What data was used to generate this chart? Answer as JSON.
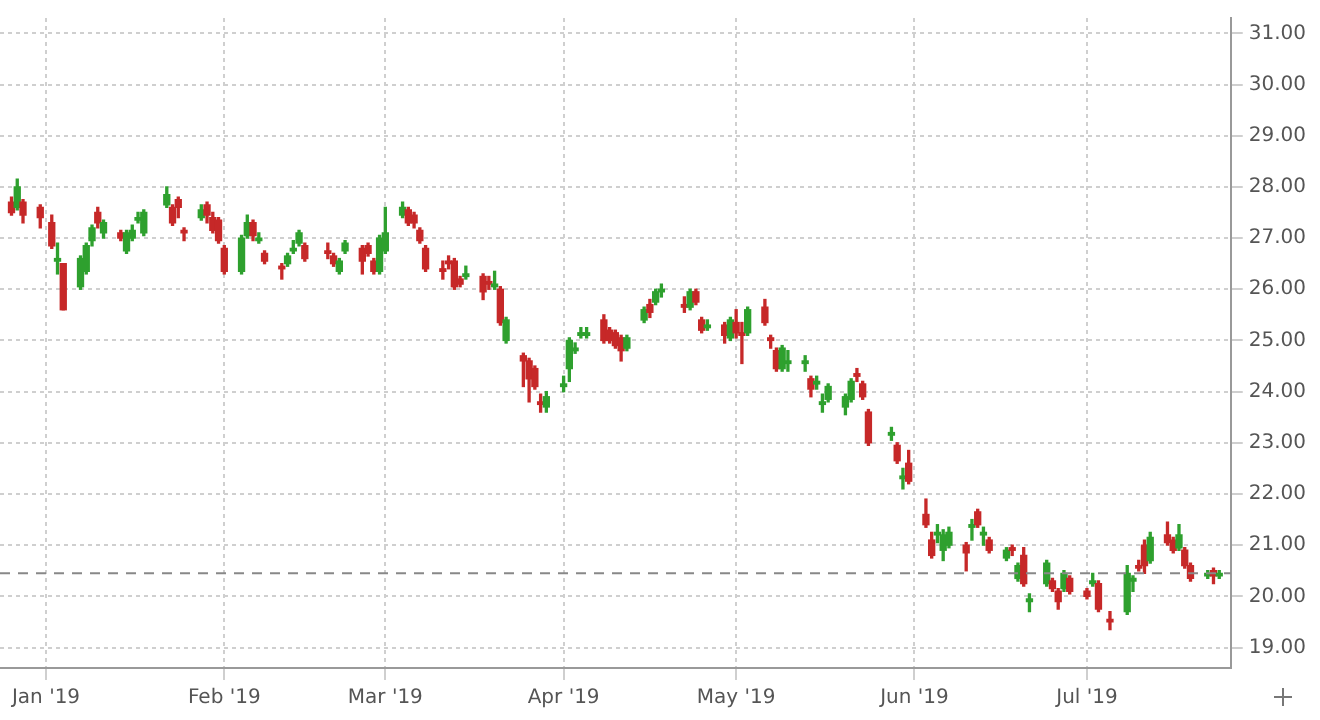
{
  "chart_data": {
    "type": "candlestick",
    "x": [
      "2018-12-26",
      "2018-12-27",
      "2018-12-28",
      "2018-12-31",
      "2019-01-02",
      "2019-01-03",
      "2019-01-04",
      "2019-01-07",
      "2019-01-08",
      "2019-01-09",
      "2019-01-10",
      "2019-01-11",
      "2019-01-14",
      "2019-01-15",
      "2019-01-16",
      "2019-01-17",
      "2019-01-18",
      "2019-01-22",
      "2019-01-23",
      "2019-01-24",
      "2019-01-25",
      "2019-01-28",
      "2019-01-29",
      "2019-01-30",
      "2019-01-31",
      "2019-02-01",
      "2019-02-04",
      "2019-02-05",
      "2019-02-06",
      "2019-02-07",
      "2019-02-08",
      "2019-02-11",
      "2019-02-12",
      "2019-02-13",
      "2019-02-14",
      "2019-02-15",
      "2019-02-19",
      "2019-02-20",
      "2019-02-21",
      "2019-02-22",
      "2019-02-25",
      "2019-02-26",
      "2019-02-27",
      "2019-02-28",
      "2019-03-01",
      "2019-03-04",
      "2019-03-05",
      "2019-03-06",
      "2019-03-07",
      "2019-03-08",
      "2019-03-11",
      "2019-03-12",
      "2019-03-13",
      "2019-03-14",
      "2019-03-15",
      "2019-03-18",
      "2019-03-19",
      "2019-03-20",
      "2019-03-21",
      "2019-03-22",
      "2019-03-25",
      "2019-03-26",
      "2019-03-27",
      "2019-03-28",
      "2019-03-29",
      "2019-04-01",
      "2019-04-02",
      "2019-04-03",
      "2019-04-04",
      "2019-04-05",
      "2019-04-08",
      "2019-04-09",
      "2019-04-10",
      "2019-04-11",
      "2019-04-12",
      "2019-04-15",
      "2019-04-16",
      "2019-04-17",
      "2019-04-18",
      "2019-04-22",
      "2019-04-23",
      "2019-04-24",
      "2019-04-25",
      "2019-04-26",
      "2019-04-29",
      "2019-04-30",
      "2019-05-01",
      "2019-05-02",
      "2019-05-03",
      "2019-05-06",
      "2019-05-07",
      "2019-05-08",
      "2019-05-09",
      "2019-05-10",
      "2019-05-13",
      "2019-05-14",
      "2019-05-15",
      "2019-05-16",
      "2019-05-17",
      "2019-05-20",
      "2019-05-21",
      "2019-05-22",
      "2019-05-23",
      "2019-05-24",
      "2019-05-28",
      "2019-05-29",
      "2019-05-30",
      "2019-05-31",
      "2019-06-03",
      "2019-06-04",
      "2019-06-05",
      "2019-06-06",
      "2019-06-07",
      "2019-06-10",
      "2019-06-11",
      "2019-06-12",
      "2019-06-13",
      "2019-06-14",
      "2019-06-17",
      "2019-06-18",
      "2019-06-19",
      "2019-06-20",
      "2019-06-21",
      "2019-06-24",
      "2019-06-25",
      "2019-06-26",
      "2019-06-27",
      "2019-06-28",
      "2019-07-01",
      "2019-07-02",
      "2019-07-03",
      "2019-07-05",
      "2019-07-08",
      "2019-07-09",
      "2019-07-10",
      "2019-07-11",
      "2019-07-12",
      "2019-07-15",
      "2019-07-16",
      "2019-07-17",
      "2019-07-18",
      "2019-07-19",
      "2019-07-22",
      "2019-07-23",
      "2019-07-24"
    ],
    "ohlc": [
      [
        27.7,
        27.8,
        27.45,
        27.5
      ],
      [
        27.6,
        28.15,
        27.55,
        28.0
      ],
      [
        27.7,
        27.75,
        27.3,
        27.45
      ],
      [
        27.6,
        27.65,
        27.2,
        27.4
      ],
      [
        27.3,
        27.45,
        26.8,
        26.85
      ],
      [
        26.55,
        26.9,
        26.3,
        26.6
      ],
      [
        26.5,
        26.5,
        25.6,
        25.6
      ],
      [
        26.05,
        26.65,
        26.0,
        26.6
      ],
      [
        26.35,
        26.9,
        26.3,
        26.85
      ],
      [
        26.95,
        27.25,
        26.85,
        27.2
      ],
      [
        27.5,
        27.6,
        27.2,
        27.3
      ],
      [
        27.1,
        27.35,
        27.0,
        27.3
      ],
      [
        27.1,
        27.15,
        26.95,
        27.0
      ],
      [
        26.75,
        27.15,
        26.7,
        27.1
      ],
      [
        27.0,
        27.25,
        26.95,
        27.15
      ],
      [
        27.35,
        27.5,
        27.3,
        27.4
      ],
      [
        27.1,
        27.55,
        27.05,
        27.5
      ],
      [
        27.65,
        28.0,
        27.6,
        27.85
      ],
      [
        27.6,
        27.65,
        27.25,
        27.3
      ],
      [
        27.75,
        27.8,
        27.4,
        27.6
      ],
      [
        27.15,
        27.2,
        26.95,
        27.1
      ],
      [
        27.4,
        27.65,
        27.35,
        27.55
      ],
      [
        27.65,
        27.7,
        27.3,
        27.45
      ],
      [
        27.4,
        27.5,
        27.1,
        27.15
      ],
      [
        27.35,
        27.4,
        26.9,
        26.95
      ],
      [
        26.8,
        26.85,
        26.3,
        26.35
      ],
      [
        26.35,
        27.05,
        26.3,
        27.0
      ],
      [
        27.05,
        27.45,
        27.0,
        27.3
      ],
      [
        27.3,
        27.35,
        26.95,
        27.05
      ],
      [
        26.95,
        27.1,
        26.9,
        27.0
      ],
      [
        26.7,
        26.75,
        26.5,
        26.55
      ],
      [
        26.45,
        26.5,
        26.2,
        26.4
      ],
      [
        26.5,
        26.7,
        26.45,
        26.65
      ],
      [
        26.75,
        26.95,
        26.7,
        26.8
      ],
      [
        26.9,
        27.15,
        26.85,
        27.1
      ],
      [
        26.85,
        26.9,
        26.55,
        26.6
      ],
      [
        26.75,
        26.9,
        26.6,
        26.7
      ],
      [
        26.65,
        26.7,
        26.45,
        26.5
      ],
      [
        26.35,
        26.6,
        26.3,
        26.55
      ],
      [
        26.75,
        26.95,
        26.7,
        26.9
      ],
      [
        26.8,
        26.85,
        26.3,
        26.55
      ],
      [
        26.85,
        26.9,
        26.65,
        26.7
      ],
      [
        26.55,
        26.6,
        26.3,
        26.35
      ],
      [
        26.35,
        27.05,
        26.3,
        27.0
      ],
      [
        26.75,
        27.6,
        26.7,
        27.1
      ],
      [
        27.45,
        27.7,
        27.4,
        27.6
      ],
      [
        27.55,
        27.6,
        27.25,
        27.3
      ],
      [
        27.45,
        27.5,
        27.2,
        27.3
      ],
      [
        27.15,
        27.2,
        26.9,
        26.95
      ],
      [
        26.8,
        26.85,
        26.35,
        26.4
      ],
      [
        26.4,
        26.55,
        26.2,
        26.35
      ],
      [
        26.55,
        26.65,
        26.4,
        26.5
      ],
      [
        26.55,
        26.6,
        26.0,
        26.05
      ],
      [
        26.2,
        26.25,
        26.05,
        26.1
      ],
      [
        26.25,
        26.45,
        26.2,
        26.3
      ],
      [
        26.25,
        26.3,
        25.8,
        25.95
      ],
      [
        26.15,
        26.25,
        26.0,
        26.1
      ],
      [
        26.05,
        26.35,
        26.0,
        26.1
      ],
      [
        26.0,
        26.05,
        25.3,
        25.35
      ],
      [
        25.0,
        25.45,
        24.95,
        25.4
      ],
      [
        24.7,
        24.75,
        24.1,
        24.6
      ],
      [
        24.6,
        24.65,
        23.8,
        24.25
      ],
      [
        24.45,
        24.5,
        24.05,
        24.1
      ],
      [
        23.8,
        23.95,
        23.6,
        23.75
      ],
      [
        23.7,
        24.0,
        23.6,
        23.9
      ],
      [
        24.1,
        24.3,
        24.0,
        24.15
      ],
      [
        24.45,
        25.05,
        24.2,
        25.0
      ],
      [
        24.8,
        24.95,
        24.75,
        24.85
      ],
      [
        25.1,
        25.25,
        25.05,
        25.15
      ],
      [
        25.1,
        25.25,
        25.05,
        25.15
      ],
      [
        25.4,
        25.5,
        24.95,
        25.0
      ],
      [
        25.2,
        25.25,
        24.95,
        25.0
      ],
      [
        25.15,
        25.2,
        24.85,
        24.9
      ],
      [
        25.05,
        25.1,
        24.6,
        24.8
      ],
      [
        24.85,
        25.1,
        24.8,
        25.05
      ],
      [
        25.4,
        25.65,
        25.35,
        25.6
      ],
      [
        25.7,
        25.8,
        25.45,
        25.55
      ],
      [
        25.75,
        26.0,
        25.7,
        25.95
      ],
      [
        25.95,
        26.1,
        25.85,
        26.0
      ],
      [
        25.7,
        25.85,
        25.55,
        25.65
      ],
      [
        25.65,
        26.0,
        25.6,
        25.95
      ],
      [
        25.95,
        26.0,
        25.7,
        25.75
      ],
      [
        25.4,
        25.45,
        25.15,
        25.2
      ],
      [
        25.25,
        25.4,
        25.2,
        25.3
      ],
      [
        25.3,
        25.35,
        24.95,
        25.1
      ],
      [
        25.05,
        25.45,
        25.0,
        25.4
      ],
      [
        25.35,
        25.6,
        25.05,
        25.15
      ],
      [
        25.15,
        25.35,
        24.55,
        25.1
      ],
      [
        25.15,
        25.65,
        25.1,
        25.6
      ],
      [
        25.65,
        25.8,
        25.3,
        25.35
      ],
      [
        25.05,
        25.1,
        24.85,
        25.0
      ],
      [
        24.8,
        24.85,
        24.4,
        24.45
      ],
      [
        24.45,
        24.9,
        24.4,
        24.85
      ],
      [
        24.55,
        24.8,
        24.4,
        24.6
      ],
      [
        24.55,
        24.7,
        24.4,
        24.6
      ],
      [
        24.25,
        24.3,
        23.9,
        24.05
      ],
      [
        24.15,
        24.3,
        24.05,
        24.2
      ],
      [
        23.75,
        23.95,
        23.6,
        23.8
      ],
      [
        23.85,
        24.15,
        23.8,
        24.1
      ],
      [
        23.7,
        23.95,
        23.55,
        23.9
      ],
      [
        23.85,
        24.25,
        23.8,
        24.2
      ],
      [
        24.35,
        24.45,
        24.2,
        24.3
      ],
      [
        24.15,
        24.2,
        23.85,
        23.9
      ],
      [
        23.6,
        23.65,
        22.95,
        23.0
      ],
      [
        23.15,
        23.3,
        23.05,
        23.2
      ],
      [
        22.95,
        23.0,
        22.6,
        22.65
      ],
      [
        22.3,
        22.5,
        22.1,
        22.35
      ],
      [
        22.6,
        22.85,
        22.2,
        22.25
      ],
      [
        21.6,
        21.9,
        21.35,
        21.4
      ],
      [
        21.1,
        21.25,
        20.75,
        20.8
      ],
      [
        21.2,
        21.4,
        21.05,
        21.25
      ],
      [
        20.9,
        21.3,
        20.7,
        21.2
      ],
      [
        21.0,
        21.35,
        20.95,
        21.25
      ],
      [
        21.0,
        21.05,
        20.5,
        20.85
      ],
      [
        21.35,
        21.5,
        21.1,
        21.4
      ],
      [
        21.65,
        21.7,
        21.35,
        21.4
      ],
      [
        21.2,
        21.35,
        21.0,
        21.25
      ],
      [
        21.1,
        21.15,
        20.85,
        20.9
      ],
      [
        20.75,
        20.95,
        20.7,
        20.9
      ],
      [
        20.95,
        21.0,
        20.8,
        20.9
      ],
      [
        20.35,
        20.65,
        20.3,
        20.6
      ],
      [
        20.8,
        20.95,
        20.2,
        20.25
      ],
      [
        19.9,
        20.05,
        19.7,
        19.95
      ],
      [
        20.25,
        20.7,
        20.2,
        20.65
      ],
      [
        20.3,
        20.35,
        20.1,
        20.15
      ],
      [
        20.1,
        20.15,
        19.75,
        19.9
      ],
      [
        20.15,
        20.5,
        20.1,
        20.45
      ],
      [
        20.35,
        20.4,
        20.05,
        20.1
      ],
      [
        20.1,
        20.15,
        19.95,
        20.0
      ],
      [
        20.25,
        20.45,
        20.2,
        20.3
      ],
      [
        20.25,
        20.3,
        19.7,
        19.75
      ],
      [
        19.55,
        19.7,
        19.35,
        19.5
      ],
      [
        19.7,
        20.6,
        19.65,
        20.45
      ],
      [
        20.3,
        20.4,
        20.1,
        20.35
      ],
      [
        20.6,
        20.7,
        20.5,
        20.55
      ],
      [
        21.0,
        21.1,
        20.45,
        20.6
      ],
      [
        20.7,
        21.25,
        20.65,
        21.15
      ],
      [
        21.2,
        21.45,
        21.0,
        21.05
      ],
      [
        21.1,
        21.15,
        20.85,
        20.9
      ],
      [
        20.95,
        21.4,
        20.9,
        21.2
      ],
      [
        20.9,
        20.95,
        20.55,
        20.6
      ],
      [
        20.6,
        20.65,
        20.3,
        20.35
      ],
      [
        20.4,
        20.5,
        20.35,
        20.45
      ],
      [
        20.5,
        20.55,
        20.25,
        20.4
      ],
      [
        20.4,
        20.5,
        20.35,
        20.45
      ]
    ],
    "colors": [
      "#c62828",
      "#2ea02e",
      "#c62828",
      "#c62828",
      "#c62828",
      "#2ea02e",
      "#c62828",
      "#2ea02e",
      "#2ea02e",
      "#2ea02e",
      "#c62828",
      "#2ea02e",
      "#c62828",
      "#2ea02e",
      "#2ea02e",
      "#2ea02e",
      "#2ea02e",
      "#2ea02e",
      "#c62828",
      "#c62828",
      "#c62828",
      "#2ea02e",
      "#c62828",
      "#c62828",
      "#c62828",
      "#c62828",
      "#2ea02e",
      "#2ea02e",
      "#c62828",
      "#2ea02e",
      "#c62828",
      "#c62828",
      "#2ea02e",
      "#2ea02e",
      "#2ea02e",
      "#c62828",
      "#c62828",
      "#c62828",
      "#2ea02e",
      "#2ea02e",
      "#c62828",
      "#c62828",
      "#c62828",
      "#2ea02e",
      "#2ea02e",
      "#2ea02e",
      "#c62828",
      "#c62828",
      "#c62828",
      "#c62828",
      "#c62828",
      "#c62828",
      "#c62828",
      "#c62828",
      "#2ea02e",
      "#c62828",
      "#c62828",
      "#2ea02e",
      "#c62828",
      "#2ea02e",
      "#c62828",
      "#c62828",
      "#c62828",
      "#c62828",
      "#2ea02e",
      "#2ea02e",
      "#2ea02e",
      "#2ea02e",
      "#2ea02e",
      "#2ea02e",
      "#c62828",
      "#c62828",
      "#c62828",
      "#c62828",
      "#2ea02e",
      "#2ea02e",
      "#c62828",
      "#2ea02e",
      "#2ea02e",
      "#c62828",
      "#2ea02e",
      "#c62828",
      "#c62828",
      "#2ea02e",
      "#c62828",
      "#2ea02e",
      "#c62828",
      "#c62828",
      "#2ea02e",
      "#c62828",
      "#c62828",
      "#c62828",
      "#2ea02e",
      "#2ea02e",
      "#2ea02e",
      "#c62828",
      "#2ea02e",
      "#2ea02e",
      "#2ea02e",
      "#2ea02e",
      "#2ea02e",
      "#c62828",
      "#c62828",
      "#c62828",
      "#2ea02e",
      "#c62828",
      "#2ea02e",
      "#c62828",
      "#c62828",
      "#c62828",
      "#2ea02e",
      "#2ea02e",
      "#2ea02e",
      "#c62828",
      "#2ea02e",
      "#c62828",
      "#2ea02e",
      "#c62828",
      "#2ea02e",
      "#c62828",
      "#2ea02e",
      "#c62828",
      "#2ea02e",
      "#2ea02e",
      "#c62828",
      "#c62828",
      "#2ea02e",
      "#c62828",
      "#c62828",
      "#2ea02e",
      "#c62828",
      "#c62828",
      "#2ea02e",
      "#2ea02e",
      "#c62828",
      "#c62828",
      "#2ea02e",
      "#c62828",
      "#c62828",
      "#2ea02e",
      "#c62828",
      "#c62828",
      "#2ea02e",
      "#c62828",
      "#2ea02e"
    ],
    "xlim": [
      "2018-12-24",
      "2019-07-26"
    ],
    "xticks": [
      {
        "value": "2019-01-01",
        "label": "Jan '19"
      },
      {
        "value": "2019-02-01",
        "label": "Feb '19"
      },
      {
        "value": "2019-03-01",
        "label": "Mar '19"
      },
      {
        "value": "2019-04-01",
        "label": "Apr '19"
      },
      {
        "value": "2019-05-01",
        "label": "May '19"
      },
      {
        "value": "2019-06-01",
        "label": "Jun '19"
      },
      {
        "value": "2019-07-01",
        "label": "Jul '19"
      }
    ],
    "ylim": [
      18.6,
      31.3
    ],
    "yticks": [
      {
        "value": 19,
        "label": "19.00"
      },
      {
        "value": 20,
        "label": "20.00"
      },
      {
        "value": 21,
        "label": "21.00"
      },
      {
        "value": 22,
        "label": "22.00"
      },
      {
        "value": 23,
        "label": "23.00"
      },
      {
        "value": 24,
        "label": "24.00"
      },
      {
        "value": 25,
        "label": "25.00"
      },
      {
        "value": 26,
        "label": "26.00"
      },
      {
        "value": 27,
        "label": "27.00"
      },
      {
        "value": 28,
        "label": "28.00"
      },
      {
        "value": 29,
        "label": "29.00"
      },
      {
        "value": 30,
        "label": "30.00"
      },
      {
        "value": 31,
        "label": "31.00"
      }
    ],
    "grid": true,
    "ref_lines": [
      {
        "axis": "y",
        "value": 20.45,
        "color": "#888888",
        "line_style": "dashed"
      }
    ],
    "legend": false
  }
}
